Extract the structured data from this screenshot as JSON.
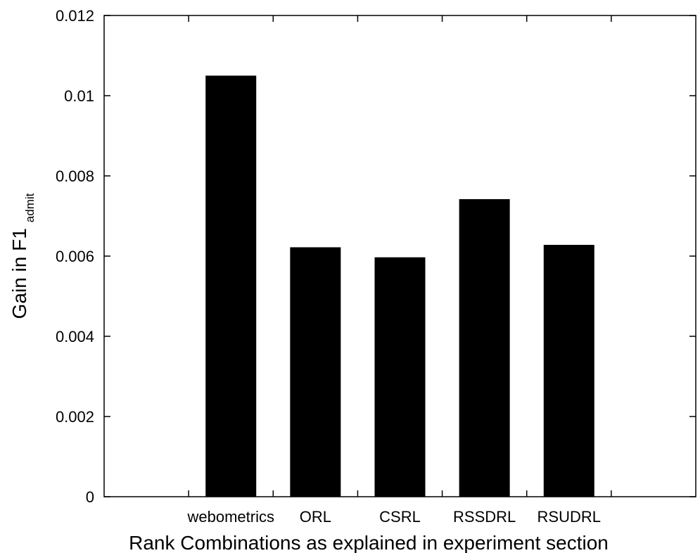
{
  "chart_data": {
    "type": "bar",
    "title": "",
    "xlabel": "Rank Combinations as explained in experiment section",
    "ylabel": {
      "main": "Gain in F1",
      "subscript": "admit"
    },
    "categories": [
      "",
      "webometrics",
      "ORL",
      "CSRL",
      "RSSDRL",
      "RSUDRL",
      ""
    ],
    "values": [
      null,
      0.0105,
      0.00622,
      0.00597,
      0.00742,
      0.00628,
      null
    ],
    "ylim": [
      0,
      0.012
    ],
    "yticks": [
      0,
      0.002,
      0.004,
      0.006,
      0.008,
      0.01,
      0.012
    ],
    "ytick_labels": [
      "0",
      "0.002",
      "0.004",
      "0.006",
      "0.008",
      "0.01",
      "0.012"
    ],
    "grid": false,
    "bar_color": "#000000"
  }
}
